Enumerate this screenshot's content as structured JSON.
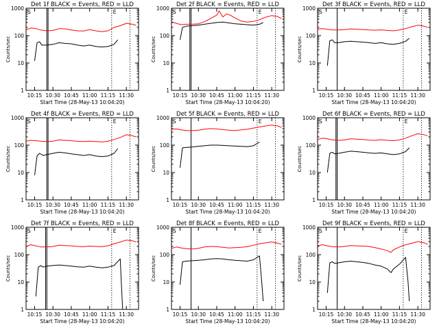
{
  "colors": {
    "events": "#000000",
    "lld": "#ff0000",
    "axes": "#000000",
    "background": "#ffffff"
  },
  "chart_data": {
    "type": "line",
    "xlabel": "Start Time (28-May-13 10:04:20)",
    "ylabel": "Counts/sec",
    "yscale": "log",
    "ylim": [
      1,
      1000
    ],
    "yticks": [
      "1",
      "10",
      "100",
      "1000"
    ],
    "xlim": [
      "10:08",
      "11:40"
    ],
    "xticks": [
      "10:15",
      "10:30",
      "10:45",
      "11:00",
      "11:15",
      "11:30"
    ],
    "grid": false,
    "markers": {
      "left": "S",
      "right": "E"
    },
    "vlines_dotted": [
      "11:18",
      "11:33"
    ],
    "panels": [
      {
        "title": "Det 1f BLACK = Events, RED = LLD",
        "series": [
          {
            "key": "lld",
            "x": [
              "10:08",
              "10:12",
              "10:16",
              "10:20",
              "10:25",
              "10:30",
              "10:35",
              "10:40",
              "10:45",
              "10:50",
              "10:55",
              "11:00",
              "11:05",
              "11:10",
              "11:15",
              "11:20",
              "11:25",
              "11:30",
              "11:35",
              "11:38"
            ],
            "values": [
              160,
              190,
              180,
              160,
              150,
              155,
              180,
              175,
              160,
              150,
              148,
              165,
              150,
              140,
              150,
              200,
              230,
              280,
              260,
              240
            ]
          },
          {
            "key": "events",
            "x": [
              "10:15",
              "10:17",
              "10:19",
              "10:21",
              "10:25",
              "10:30",
              "10:35",
              "10:40",
              "10:45",
              "10:50",
              "10:55",
              "11:00",
              "11:05",
              "11:10",
              "11:15",
              "11:20",
              "11:23"
            ],
            "values": [
              12,
              55,
              60,
              45,
              45,
              48,
              55,
              52,
              50,
              45,
              42,
              45,
              40,
              38,
              40,
              48,
              70
            ]
          }
        ],
        "vlines_solid": [
          "10:25",
          "10:26"
        ]
      },
      {
        "title": "Det 2f BLACK = Events, RED = LLD",
        "series": [
          {
            "key": "lld",
            "x": [
              "10:08",
              "10:12",
              "10:16",
              "10:20",
              "10:25",
              "10:30",
              "10:35",
              "10:40",
              "10:45",
              "10:47",
              "10:50",
              "10:53",
              "10:56",
              "11:00",
              "11:05",
              "11:10",
              "11:15",
              "11:20",
              "11:25",
              "11:30",
              "11:35",
              "11:38"
            ],
            "values": [
              320,
              280,
              250,
              260,
              260,
              270,
              320,
              420,
              560,
              800,
              480,
              620,
              560,
              440,
              340,
              310,
              330,
              380,
              470,
              540,
              490,
              420
            ]
          },
          {
            "key": "events",
            "x": [
              "10:15",
              "10:17",
              "10:20",
              "10:25",
              "10:30",
              "10:35",
              "10:40",
              "10:45",
              "10:50",
              "10:55",
              "11:00",
              "11:05",
              "11:10",
              "11:15",
              "11:20",
              "11:23"
            ],
            "values": [
              70,
              200,
              220,
              230,
              240,
              260,
              280,
              300,
              310,
              290,
              270,
              260,
              250,
              240,
              260,
              300
            ]
          }
        ],
        "vlines_solid": [
          "10:23",
          "10:24"
        ]
      },
      {
        "title": "Det 3f BLACK = Events, RED = LLD",
        "series": [
          {
            "key": "lld",
            "x": [
              "10:08",
              "10:12",
              "10:16",
              "10:20",
              "10:25",
              "10:30",
              "10:35",
              "10:40",
              "10:45",
              "10:50",
              "10:55",
              "11:00",
              "11:05",
              "11:10",
              "11:15",
              "11:20",
              "11:25",
              "11:30",
              "11:35",
              "11:38"
            ],
            "values": [
              170,
              180,
              170,
              160,
              160,
              165,
              175,
              170,
              165,
              160,
              158,
              162,
              155,
              150,
              160,
              180,
              210,
              240,
              220,
              200
            ]
          },
          {
            "key": "events",
            "x": [
              "10:16",
              "10:18",
              "10:20",
              "10:22",
              "10:25",
              "10:30",
              "10:35",
              "10:40",
              "10:45",
              "10:50",
              "10:55",
              "11:00",
              "11:05",
              "11:10",
              "11:15",
              "11:20",
              "11:23"
            ],
            "values": [
              8,
              65,
              70,
              55,
              55,
              60,
              62,
              60,
              58,
              55,
              52,
              55,
              50,
              48,
              52,
              62,
              80
            ]
          }
        ],
        "vlines_solid": [
          "10:24"
        ]
      },
      {
        "title": "Det 4f BLACK = Events, RED = LLD",
        "series": [
          {
            "key": "lld",
            "x": [
              "10:08",
              "10:12",
              "10:16",
              "10:20",
              "10:25",
              "10:30",
              "10:35",
              "10:40",
              "10:45",
              "10:50",
              "10:55",
              "11:00",
              "11:05",
              "11:10",
              "11:15",
              "11:20",
              "11:25",
              "11:30",
              "11:35",
              "11:38"
            ],
            "values": [
              140,
              150,
              145,
              140,
              135,
              140,
              155,
              150,
              145,
              138,
              135,
              140,
              135,
              130,
              138,
              160,
              190,
              240,
              220,
              200
            ]
          },
          {
            "key": "events",
            "x": [
              "10:15",
              "10:17",
              "10:19",
              "10:22",
              "10:25",
              "10:30",
              "10:35",
              "10:40",
              "10:45",
              "10:50",
              "10:55",
              "11:00",
              "11:05",
              "11:10",
              "11:15",
              "11:20",
              "11:23"
            ],
            "values": [
              8,
              40,
              50,
              42,
              45,
              50,
              55,
              52,
              48,
              45,
              42,
              45,
              40,
              38,
              40,
              50,
              75
            ]
          }
        ],
        "vlines_solid": [
          "10:25",
          "10:26"
        ]
      },
      {
        "title": "Det 5f BLACK = Events, RED = LLD",
        "series": [
          {
            "key": "lld",
            "x": [
              "10:08",
              "10:12",
              "10:16",
              "10:20",
              "10:25",
              "10:30",
              "10:35",
              "10:40",
              "10:45",
              "10:50",
              "10:55",
              "11:00",
              "11:05",
              "11:10",
              "11:15",
              "11:20",
              "11:25",
              "11:30",
              "11:35",
              "11:38"
            ],
            "values": [
              380,
              390,
              360,
              340,
              340,
              350,
              380,
              400,
              390,
              370,
              350,
              340,
              360,
              380,
              420,
              460,
              500,
              540,
              500,
              440
            ]
          },
          {
            "key": "events",
            "x": [
              "10:15",
              "10:17",
              "10:20",
              "10:25",
              "10:30",
              "10:35",
              "10:40",
              "10:45",
              "10:50",
              "10:55",
              "11:00",
              "11:05",
              "11:10",
              "11:15",
              "11:20"
            ],
            "values": [
              15,
              80,
              82,
              85,
              90,
              95,
              100,
              100,
              98,
              95,
              92,
              90,
              88,
              95,
              130
            ]
          }
        ],
        "vlines_solid": [
          "10:24"
        ]
      },
      {
        "title": "Det 6f BLACK = Events, RED = LLD",
        "series": [
          {
            "key": "lld",
            "x": [
              "10:08",
              "10:12",
              "10:16",
              "10:20",
              "10:25",
              "10:30",
              "10:35",
              "10:40",
              "10:45",
              "10:50",
              "10:55",
              "11:00",
              "11:05",
              "11:10",
              "11:15",
              "11:20",
              "11:25",
              "11:30",
              "11:35",
              "11:38"
            ],
            "values": [
              160,
              180,
              170,
              155,
              150,
              155,
              170,
              165,
              160,
              152,
              150,
              158,
              150,
              145,
              155,
              180,
              220,
              260,
              240,
              220
            ]
          },
          {
            "key": "events",
            "x": [
              "10:16",
              "10:18",
              "10:20",
              "10:22",
              "10:25",
              "10:30",
              "10:35",
              "10:40",
              "10:45",
              "10:50",
              "10:55",
              "11:00",
              "11:05",
              "11:10",
              "11:15",
              "11:20",
              "11:23"
            ],
            "values": [
              10,
              50,
              55,
              48,
              50,
              55,
              60,
              58,
              55,
              52,
              50,
              52,
              48,
              45,
              48,
              58,
              80
            ]
          }
        ],
        "vlines_solid": [
          "10:23",
          "10:24"
        ]
      },
      {
        "title": "Det 7f BLACK = Events, RED = LLD",
        "series": [
          {
            "key": "lld",
            "x": [
              "10:08",
              "10:12",
              "10:16",
              "10:20",
              "10:25",
              "10:30",
              "10:35",
              "10:40",
              "10:45",
              "10:50",
              "10:55",
              "11:00",
              "11:05",
              "11:10",
              "11:15",
              "11:20",
              "11:25",
              "11:30",
              "11:35",
              "11:38"
            ],
            "values": [
              200,
              230,
              210,
              190,
              190,
              200,
              220,
              215,
              210,
              200,
              195,
              205,
              200,
              195,
              210,
              250,
              290,
              340,
              320,
              290
            ]
          },
          {
            "key": "events",
            "x": [
              "10:16",
              "10:18",
              "10:20",
              "10:22",
              "10:25",
              "10:30",
              "10:35",
              "10:40",
              "10:45",
              "10:50",
              "10:55",
              "11:00",
              "11:05",
              "11:10",
              "11:15",
              "11:20",
              "11:25",
              "11:26",
              "11:27"
            ],
            "values": [
              3,
              35,
              40,
              35,
              38,
              40,
              42,
              40,
              38,
              36,
              35,
              38,
              35,
              33,
              35,
              40,
              70,
              8,
              1
            ]
          }
        ],
        "vlines_solid": [
          "10:24",
          "10:25"
        ]
      },
      {
        "title": "Det 8f BLACK = Events, RED = LLD",
        "series": [
          {
            "key": "lld",
            "x": [
              "10:08",
              "10:12",
              "10:16",
              "10:20",
              "10:25",
              "10:30",
              "10:35",
              "10:40",
              "10:45",
              "10:50",
              "10:55",
              "11:00",
              "11:05",
              "11:10",
              "11:15",
              "11:20",
              "11:25",
              "11:30",
              "11:35",
              "11:38"
            ],
            "values": [
              170,
              190,
              175,
              165,
              160,
              170,
              190,
              200,
              195,
              185,
              175,
              180,
              185,
              195,
              220,
              250,
              270,
              290,
              260,
              240
            ]
          },
          {
            "key": "events",
            "x": [
              "10:15",
              "10:17",
              "10:20",
              "10:25",
              "10:30",
              "10:35",
              "10:40",
              "10:45",
              "10:50",
              "10:55",
              "11:00",
              "11:05",
              "11:10",
              "11:15",
              "11:20",
              "11:22",
              "11:23"
            ],
            "values": [
              8,
              55,
              58,
              60,
              62,
              65,
              70,
              72,
              70,
              65,
              62,
              60,
              58,
              65,
              90,
              8,
              2
            ]
          }
        ],
        "vlines_solid": [
          "10:24"
        ]
      },
      {
        "title": "Det 9f BLACK = Events, RED = LLD",
        "series": [
          {
            "key": "lld",
            "x": [
              "10:08",
              "10:12",
              "10:16",
              "10:20",
              "10:25",
              "10:30",
              "10:35",
              "10:40",
              "10:45",
              "10:50",
              "10:55",
              "11:00",
              "11:05",
              "11:08",
              "11:10",
              "11:15",
              "11:20",
              "11:25",
              "11:30",
              "11:35",
              "11:38"
            ],
            "values": [
              210,
              230,
              210,
              195,
              190,
              200,
              215,
              210,
              205,
              200,
              180,
              160,
              140,
              120,
              150,
              190,
              230,
              260,
              300,
              270,
              240
            ]
          },
          {
            "key": "events",
            "x": [
              "10:16",
              "10:18",
              "10:20",
              "10:22",
              "10:25",
              "10:30",
              "10:35",
              "10:40",
              "10:45",
              "10:50",
              "10:55",
              "11:00",
              "11:05",
              "11:08",
              "11:10",
              "11:15",
              "11:20",
              "11:22",
              "11:23"
            ],
            "values": [
              4,
              50,
              55,
              48,
              50,
              55,
              58,
              55,
              52,
              48,
              42,
              38,
              30,
              22,
              30,
              45,
              80,
              10,
              2
            ]
          }
        ],
        "vlines_solid": [
          "10:24"
        ]
      }
    ]
  }
}
